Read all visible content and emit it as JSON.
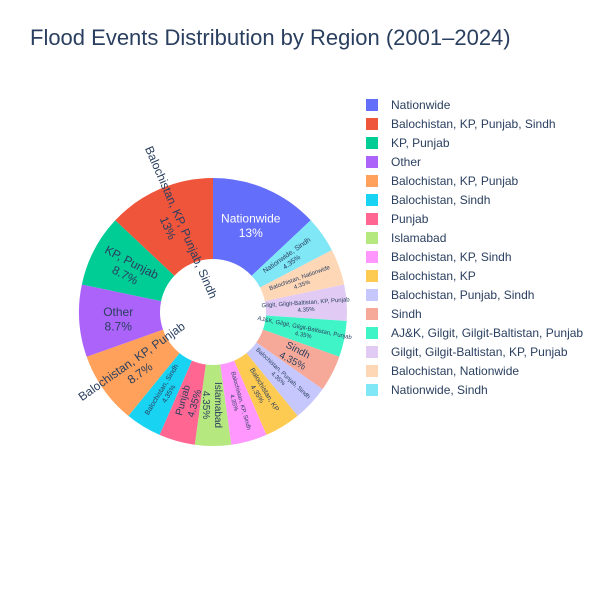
{
  "chart_data": {
    "type": "pie",
    "hole": true,
    "title": "Flood Events Distribution by Region (2001–2024)",
    "legend_placement": "right",
    "slices": [
      {
        "label": "Nationwide",
        "value": 13,
        "text": "13%",
        "color": "#636efa"
      },
      {
        "label": "Nationwide, Sindh",
        "value": 4.35,
        "text": "4.35%",
        "color": "#7fe7f6"
      },
      {
        "label": "Balochistan, Nationwide",
        "value": 4.35,
        "text": "4.35%",
        "color": "#fed7b7"
      },
      {
        "label": "Gilgit, Gilgit-Baltistan, KP, Punjab",
        "value": 4.35,
        "text": "4.35%",
        "color": "#e1cbf5"
      },
      {
        "label": "AJ&K, Gilgit, Gilgit-Baltistan, Punjab",
        "value": 4.35,
        "text": "4.35%",
        "color": "#3ff5c7"
      },
      {
        "label": "Sindh",
        "value": 4.35,
        "text": "4.35%",
        "color": "#f6a999"
      },
      {
        "label": "Balochistan, Punjab, Sindh",
        "value": 4.35,
        "text": "4.35%",
        "color": "#c6c7fc"
      },
      {
        "label": "Balochistan, KP",
        "value": 4.35,
        "text": "4.35%",
        "color": "#fecb52"
      },
      {
        "label": "Balochistan, KP, Sindh",
        "value": 4.35,
        "text": "4.35%",
        "color": "#ff97ff"
      },
      {
        "label": "Islamabad",
        "value": 4.35,
        "text": "4.35%",
        "color": "#b6e880"
      },
      {
        "label": "Punjab",
        "value": 4.35,
        "text": "4.35%",
        "color": "#ff6692"
      },
      {
        "label": "Balochistan, Sindh",
        "value": 4.35,
        "text": "4.35%",
        "color": "#19d3f3"
      },
      {
        "label": "Balochistan, KP, Punjab",
        "value": 8.7,
        "text": "8.7%",
        "color": "#ffa15a"
      },
      {
        "label": "Other",
        "value": 8.7,
        "text": "8.7%",
        "color": "#ab63fa"
      },
      {
        "label": "KP, Punjab",
        "value": 8.7,
        "text": "8.7%",
        "color": "#00cc96"
      },
      {
        "label": "Balochistan, KP, Punjab, Sindh",
        "value": 13,
        "text": "13%",
        "color": "#ef553b"
      }
    ],
    "legend_order": [
      "Nationwide",
      "Balochistan, KP, Punjab, Sindh",
      "KP, Punjab",
      "Other",
      "Balochistan, KP, Punjab",
      "Balochistan, Sindh",
      "Punjab",
      "Islamabad",
      "Balochistan, KP, Sindh",
      "Balochistan, KP",
      "Balochistan, Punjab, Sindh",
      "Sindh",
      "AJ&K, Gilgit, Gilgit-Baltistan, Punjab",
      "Gilgit, Gilgit-Baltistan, KP, Punjab",
      "Balochistan, Nationwide",
      "Nationwide, Sindh"
    ]
  }
}
